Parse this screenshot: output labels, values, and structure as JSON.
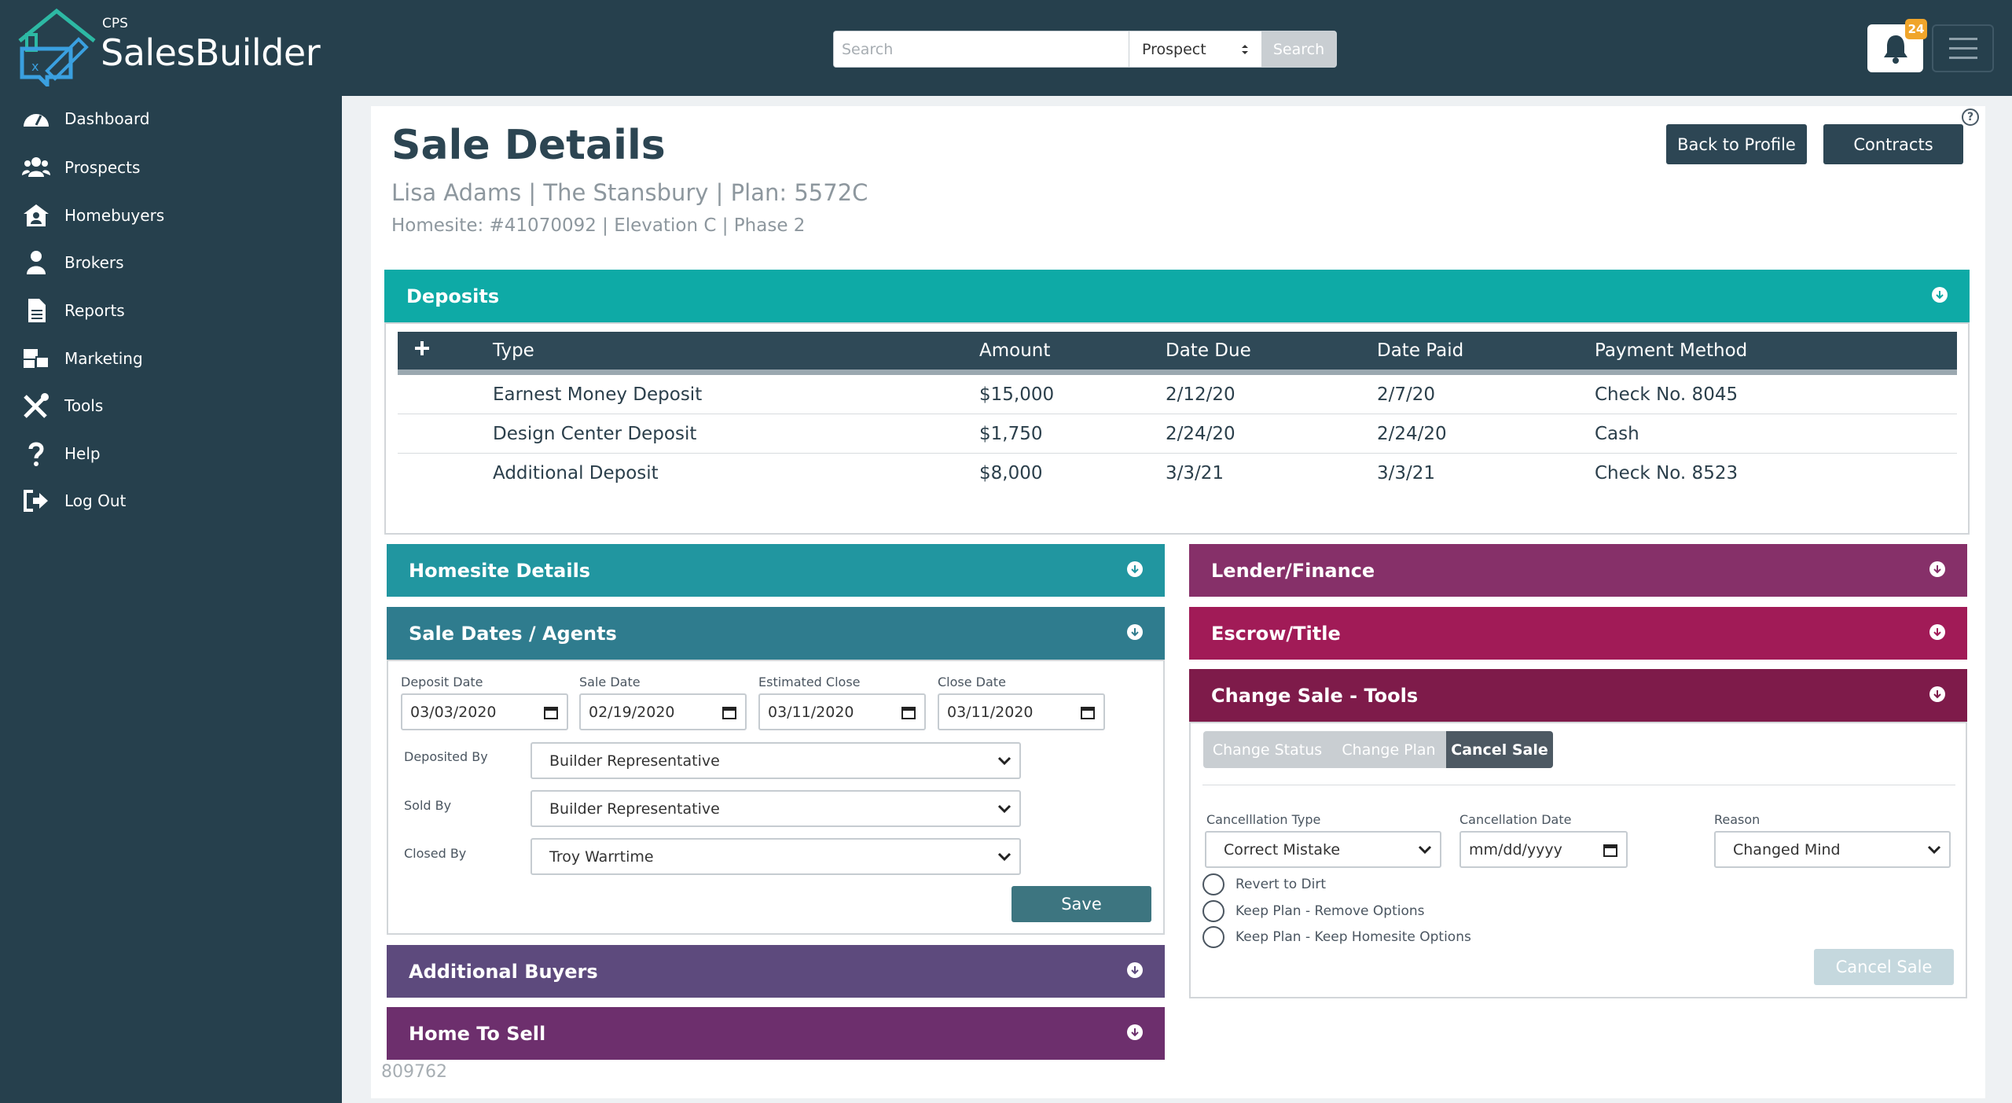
{
  "brand": {
    "small": "CPS",
    "name": "SalesBuilder"
  },
  "search": {
    "placeholder": "Search",
    "value": "",
    "select_value": "Prospect",
    "button_label": "Search"
  },
  "notifications": {
    "count": "24"
  },
  "sidebar": {
    "items": [
      {
        "label": "Dashboard",
        "icon": "dashboard-icon"
      },
      {
        "label": "Prospects",
        "icon": "users-icon"
      },
      {
        "label": "Homebuyers",
        "icon": "house-user-icon"
      },
      {
        "label": "Brokers",
        "icon": "person-icon"
      },
      {
        "label": "Reports",
        "icon": "document-icon"
      },
      {
        "label": "Marketing",
        "icon": "mail-bulk-icon"
      },
      {
        "label": "Tools",
        "icon": "tools-icon"
      },
      {
        "label": "Help",
        "icon": "question-icon"
      },
      {
        "label": "Log Out",
        "icon": "logout-icon"
      }
    ]
  },
  "header": {
    "title": "Sale Details",
    "subtitle": "Lisa Adams | The Stansbury | Plan: 5572C",
    "subtitle2": "Homesite: #41070092 | Elevation C | Phase 2",
    "back_button": "Back to Profile",
    "contracts_button": "Contracts"
  },
  "deposits": {
    "title": "Deposits",
    "columns": [
      "Type",
      "Amount",
      "Date Due",
      "Date Paid",
      "Payment Method"
    ],
    "rows": [
      {
        "type": "Earnest Money Deposit",
        "amount": "$15,000",
        "due": "2/12/20",
        "paid": "2/7/20",
        "method": "Check No. 8045"
      },
      {
        "type": "Design Center Deposit",
        "amount": "$1,750",
        "due": "2/24/20",
        "paid": "2/24/20",
        "method": "Cash"
      },
      {
        "type": "Additional Deposit",
        "amount": "$8,000",
        "due": "3/3/21",
        "paid": "3/3/21",
        "method": "Check No. 8523"
      }
    ]
  },
  "panels": {
    "homesite": "Homesite Details",
    "sale_dates": "Sale Dates / Agents",
    "additional_buyers": "Additional Buyers",
    "home_to_sell": "Home To Sell",
    "lender": "Lender/Finance",
    "escrow": "Escrow/Title",
    "change_sale": "Change Sale - Tools"
  },
  "sale_dates": {
    "deposit_date_label": "Deposit Date",
    "deposit_date": "03/03/2020",
    "sale_date_label": "Sale Date",
    "sale_date": "02/19/2020",
    "est_close_label": "Estimated Close",
    "est_close": "03/11/2020",
    "close_date_label": "Close Date",
    "close_date": "03/11/2020",
    "deposited_by_label": "Deposited By",
    "deposited_by": "Builder Representative",
    "sold_by_label": "Sold By",
    "sold_by": "Builder Representative",
    "closed_by_label": "Closed By",
    "closed_by": "Troy Warrtime",
    "save_label": "Save"
  },
  "change_sale": {
    "tabs": [
      "Change Status",
      "Change Plan",
      "Cancel Sale"
    ],
    "active_tab": "Cancel Sale",
    "cancel_type_label": "Cancelllation Type",
    "cancel_type": "Correct Mistake",
    "cancel_date_label": "Cancellation Date",
    "cancel_date_placeholder": "mm/dd/yyyy",
    "reason_label": "Reason",
    "reason": "Changed Mind",
    "options": [
      "Revert to Dirt",
      "Keep Plan - Remove Options",
      "Keep Plan - Keep Homesite Options"
    ],
    "cancel_button": "Cancel Sale"
  },
  "footer_id": "809762",
  "colors": {
    "deposits": "#0eaaa6",
    "homesite": "#2196a0",
    "sale_dates": "#2f7c8e",
    "additional_buyers": "#5d4a7d",
    "home_to_sell": "#6d2f6d",
    "lender": "#863069",
    "escrow": "#a11b57",
    "change_sale": "#7e1b4a"
  }
}
